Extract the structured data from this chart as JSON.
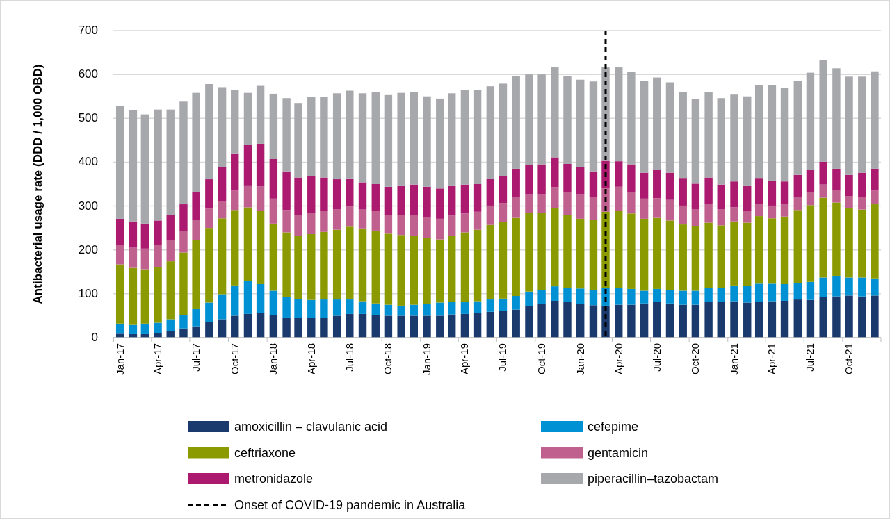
{
  "chart_data": {
    "type": "bar",
    "stacked": true,
    "ylabel": "Antibacterial usage rate (DDD / 1,000 OBD)",
    "x": [
      "2017-01",
      "2017-02",
      "2017-03",
      "2017-04",
      "2017-05",
      "2017-06",
      "2017-07",
      "2017-08",
      "2017-09",
      "2017-10",
      "2017-11",
      "2017-12",
      "2018-01",
      "2018-02",
      "2018-03",
      "2018-04",
      "2018-05",
      "2018-06",
      "2018-07",
      "2018-08",
      "2018-09",
      "2018-10",
      "2018-11",
      "2018-12",
      "2019-01",
      "2019-02",
      "2019-03",
      "2019-04",
      "2019-05",
      "2019-06",
      "2019-07",
      "2019-08",
      "2019-09",
      "2019-10",
      "2019-11",
      "2019-12",
      "2020-01",
      "2020-02",
      "2020-03",
      "2020-04",
      "2020-05",
      "2020-06",
      "2020-07",
      "2020-08",
      "2020-09",
      "2020-10",
      "2020-11",
      "2020-12",
      "2021-01",
      "2021-02",
      "2021-03",
      "2021-04",
      "2021-05",
      "2021-06",
      "2021-07",
      "2021-08",
      "2021-09",
      "2021-10",
      "2021-11",
      "2021-12"
    ],
    "xlim": [
      "2016-12-16",
      "2021-12-16"
    ],
    "xticks": [
      {
        "value": "2017-01",
        "label": "Jan-17"
      },
      {
        "value": "2017-04",
        "label": "Apr-17"
      },
      {
        "value": "2017-07",
        "label": "Jul-17"
      },
      {
        "value": "2017-10",
        "label": "Oct-17"
      },
      {
        "value": "2018-01",
        "label": "Jan-18"
      },
      {
        "value": "2018-04",
        "label": "Apr-18"
      },
      {
        "value": "2018-07",
        "label": "Jul-18"
      },
      {
        "value": "2018-10",
        "label": "Oct-18"
      },
      {
        "value": "2019-01",
        "label": "Jan-19"
      },
      {
        "value": "2019-04",
        "label": "Apr-19"
      },
      {
        "value": "2019-07",
        "label": "Jul-19"
      },
      {
        "value": "2019-10",
        "label": "Oct-19"
      },
      {
        "value": "2020-01",
        "label": "Jan-20"
      },
      {
        "value": "2020-04",
        "label": "Apr-20"
      },
      {
        "value": "2020-07",
        "label": "Jul-20"
      },
      {
        "value": "2020-10",
        "label": "Oct-20"
      },
      {
        "value": "2021-01",
        "label": "Jan-21"
      },
      {
        "value": "2021-04",
        "label": "Apr-21"
      },
      {
        "value": "2021-07",
        "label": "Jul-21"
      },
      {
        "value": "2021-10",
        "label": "Oct-21"
      }
    ],
    "ylim": [
      0,
      700
    ],
    "yticks": [
      0,
      100,
      200,
      300,
      400,
      500,
      600,
      700
    ],
    "grid": "y",
    "legend": "bottom",
    "series": [
      {
        "name": "amoxicillin – clavulanic acid",
        "color": "#1a3a6e",
        "values": [
          9,
          8,
          8,
          10,
          15,
          21,
          26,
          36,
          42,
          50,
          54,
          56,
          51,
          46,
          45,
          45,
          45,
          50,
          54,
          54,
          51,
          50,
          50,
          50,
          50,
          50,
          53,
          54,
          56,
          59,
          61,
          64,
          72,
          77,
          84,
          81,
          77,
          74,
          73,
          75,
          75,
          78,
          81,
          78,
          75,
          75,
          81,
          81,
          83,
          80,
          81,
          83,
          84,
          87,
          86,
          92,
          94,
          96,
          94,
          96
        ]
      },
      {
        "name": "cefepime",
        "color": "#0090d4",
        "values": [
          23,
          21,
          24,
          24,
          27,
          30,
          39,
          44,
          57,
          69,
          75,
          66,
          56,
          46,
          43,
          41,
          42,
          37,
          33,
          29,
          27,
          25,
          23,
          25,
          27,
          30,
          28,
          28,
          27,
          28,
          28,
          31,
          33,
          32,
          33,
          32,
          35,
          35,
          40,
          38,
          36,
          29,
          30,
          31,
          32,
          32,
          32,
          33,
          36,
          38,
          42,
          40,
          38,
          37,
          41,
          45,
          47,
          41,
          43,
          39
        ]
      },
      {
        "name": "ceftriaxone",
        "color": "#8a9a00",
        "values": [
          135,
          130,
          124,
          126,
          132,
          143,
          158,
          170,
          173,
          172,
          168,
          167,
          153,
          148,
          144,
          150,
          154,
          159,
          166,
          166,
          166,
          162,
          161,
          157,
          150,
          144,
          151,
          158,
          163,
          170,
          174,
          178,
          179,
          176,
          178,
          166,
          159,
          160,
          174,
          176,
          172,
          164,
          162,
          158,
          151,
          147,
          149,
          142,
          146,
          144,
          154,
          149,
          154,
          167,
          175,
          182,
          167,
          158,
          155,
          169
        ]
      },
      {
        "name": "gentamicin",
        "color": "#c0608e",
        "values": [
          45,
          46,
          47,
          52,
          49,
          49,
          45,
          44,
          40,
          44,
          50,
          56,
          57,
          51,
          48,
          49,
          48,
          47,
          46,
          43,
          45,
          43,
          45,
          47,
          47,
          47,
          46,
          43,
          41,
          44,
          44,
          47,
          43,
          42,
          48,
          52,
          56,
          52,
          53,
          55,
          48,
          46,
          45,
          47,
          43,
          38,
          43,
          37,
          32,
          27,
          28,
          29,
          29,
          30,
          29,
          30,
          28,
          28,
          29,
          31
        ]
      },
      {
        "name": "metronidazole",
        "color": "#ab1a6e",
        "values": [
          59,
          60,
          57,
          55,
          56,
          61,
          64,
          67,
          76,
          85,
          93,
          97,
          90,
          88,
          85,
          84,
          76,
          68,
          64,
          62,
          61,
          64,
          68,
          70,
          70,
          69,
          69,
          66,
          63,
          61,
          62,
          65,
          66,
          68,
          68,
          65,
          62,
          58,
          63,
          58,
          64,
          59,
          64,
          62,
          63,
          59,
          60,
          56,
          59,
          58,
          59,
          57,
          51,
          50,
          52,
          52,
          49,
          48,
          55,
          50
        ]
      },
      {
        "name": "piperacillin–tazobactam",
        "color": "#a7a8ac",
        "values": [
          257,
          254,
          249,
          253,
          241,
          234,
          226,
          217,
          183,
          144,
          118,
          132,
          149,
          167,
          170,
          180,
          183,
          196,
          200,
          203,
          209,
          209,
          211,
          210,
          206,
          205,
          210,
          215,
          215,
          211,
          210,
          211,
          207,
          205,
          205,
          200,
          199,
          205,
          213,
          214,
          211,
          209,
          211,
          206,
          196,
          193,
          194,
          197,
          198,
          203,
          212,
          217,
          213,
          214,
          221,
          231,
          229,
          224,
          219,
          222
        ]
      }
    ],
    "ref_lines": [
      {
        "axis": "x",
        "value": "2020-03",
        "label": "Onset of COVID-19 pandemic in Australia",
        "color": "#000000",
        "line_style": "dashed"
      }
    ]
  }
}
